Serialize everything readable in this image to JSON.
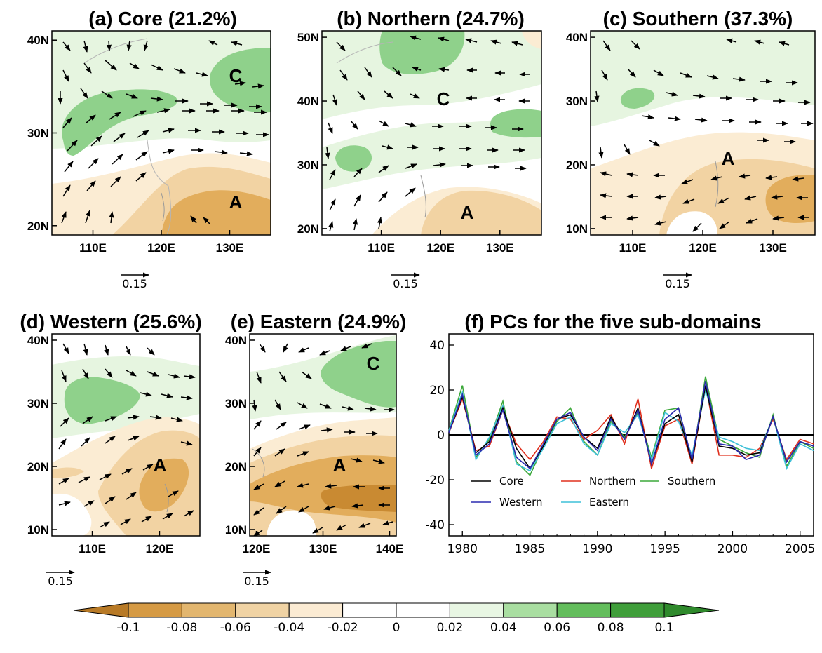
{
  "colors": {
    "green_light": "#e6f5e0",
    "green_mid": "#8fd18b",
    "green_dark": "#55b04f",
    "orange_light": "#fbecd3",
    "orange_mid": "#f2d3a3",
    "orange_dark": "#e2ad5c",
    "orange_deep": "#c98a32",
    "line_core": "#000000",
    "line_northern": "#e0301e",
    "line_southern": "#3ca83a",
    "line_western": "#2b2bb0",
    "line_eastern": "#3ec0d8"
  },
  "reference_vector": {
    "label": "0.15"
  },
  "chart_data": [
    {
      "type": "vector_map",
      "title": "(a) Core (21.2%)",
      "lon_range": [
        104,
        136
      ],
      "lat_range": [
        19,
        41
      ],
      "x_ticks": [
        "110E",
        "120E",
        "130E"
      ],
      "x_tick_values": [
        110,
        120,
        130
      ],
      "y_ticks": [
        "20N",
        "30N",
        "40N"
      ],
      "y_tick_values": [
        20,
        30,
        40
      ],
      "annotations": [
        {
          "text": "C",
          "lon": 131,
          "lat": 36
        },
        {
          "text": "A",
          "lon": 129,
          "lat": 22.3
        }
      ]
    },
    {
      "type": "vector_map",
      "title": "(b) Northern (24.7%)",
      "lon_range": [
        100,
        137
      ],
      "lat_range": [
        19,
        51
      ],
      "x_ticks": [
        "110E",
        "120E",
        "130E"
      ],
      "x_tick_values": [
        110,
        120,
        130
      ],
      "y_ticks": [
        "20N",
        "30N",
        "40N",
        "50N"
      ],
      "y_tick_values": [
        20,
        30,
        40,
        50
      ],
      "annotations": [
        {
          "text": "C",
          "lon": 121,
          "lat": 40
        },
        {
          "text": "A",
          "lon": 125,
          "lat": 22
        }
      ]
    },
    {
      "type": "vector_map",
      "title": "(c) Southern (37.3%)",
      "lon_range": [
        104,
        136
      ],
      "lat_range": [
        9,
        41
      ],
      "x_ticks": [
        "110E",
        "120E",
        "130E"
      ],
      "x_tick_values": [
        110,
        120,
        130
      ],
      "y_ticks": [
        "10N",
        "20N",
        "30N",
        "40N"
      ],
      "y_tick_values": [
        10,
        20,
        30,
        40
      ],
      "annotations": [
        {
          "text": "A",
          "lon": 126,
          "lat": 22.5
        }
      ]
    },
    {
      "type": "vector_map",
      "title": "(d) Western (25.6%)",
      "lon_range": [
        104,
        126
      ],
      "lat_range": [
        9,
        41
      ],
      "x_ticks": [
        "110E",
        "120E"
      ],
      "x_tick_values": [
        110,
        120
      ],
      "y_ticks": [
        "10N",
        "20N",
        "30N",
        "40N"
      ],
      "y_tick_values": [
        10,
        20,
        30,
        40
      ],
      "annotations": [
        {
          "text": "A",
          "lon": 118,
          "lat": 22
        }
      ]
    },
    {
      "type": "vector_map",
      "title": "(e) Eastern (24.9%)",
      "lon_range": [
        119,
        141
      ],
      "lat_range": [
        9,
        41
      ],
      "x_ticks": [
        "120E",
        "130E",
        "140E"
      ],
      "x_tick_values": [
        120,
        130,
        140
      ],
      "y_ticks": [
        "10N",
        "20N",
        "30N",
        "40N"
      ],
      "y_tick_values": [
        10,
        20,
        30,
        40
      ],
      "annotations": [
        {
          "text": "C",
          "lon": 136.5,
          "lat": 37
        },
        {
          "text": "A",
          "lon": 131.5,
          "lat": 19
        }
      ]
    },
    {
      "type": "line",
      "title": "(f) PCs for the five sub-domains",
      "xlim": [
        1979,
        2006
      ],
      "ylim": [
        -45,
        45
      ],
      "x_ticks": [
        1980,
        1985,
        1990,
        1995,
        2000,
        2005
      ],
      "y_ticks": [
        -40,
        -20,
        0,
        20,
        40
      ],
      "legend_position": "bottom-left",
      "x": [
        1979,
        1980,
        1981,
        1982,
        1983,
        1984,
        1985,
        1986,
        1987,
        1988,
        1989,
        1990,
        1991,
        1992,
        1993,
        1994,
        1995,
        1996,
        1997,
        1998,
        1999,
        2000,
        2001,
        2002,
        2003,
        2004,
        2005,
        2006
      ],
      "series": [
        {
          "name": "Core",
          "color": "#000000",
          "values": [
            1,
            17,
            -8,
            -3,
            12,
            -6,
            -15,
            -5,
            7,
            9,
            -1,
            -6,
            8,
            -2,
            12,
            -13,
            5,
            9,
            -12,
            22,
            -5,
            -6,
            -9,
            -8,
            8,
            -12,
            -3,
            -5
          ]
        },
        {
          "name": "Northern",
          "color": "#e0301e",
          "values": [
            1,
            16,
            -7,
            -5,
            11,
            -4,
            -11,
            -3,
            8,
            7,
            -2,
            2,
            9,
            -4,
            16,
            -15,
            4,
            7,
            -13,
            22,
            -9,
            -9,
            -10,
            -6,
            7,
            -11,
            -2,
            -4
          ]
        },
        {
          "name": "Southern",
          "color": "#3ca83a",
          "values": [
            2,
            22,
            -10,
            -2,
            15,
            -12,
            -18,
            -5,
            6,
            12,
            -3,
            -9,
            6,
            -1,
            10,
            -10,
            11,
            12,
            -12,
            26,
            -2,
            -5,
            -8,
            -10,
            9,
            -14,
            -3,
            -6
          ]
        },
        {
          "name": "Western",
          "color": "#2b2bb0",
          "values": [
            1,
            18,
            -9,
            -4,
            11,
            -10,
            -15,
            -4,
            7,
            10,
            -1,
            -7,
            7,
            -2,
            11,
            -13,
            7,
            12,
            -11,
            24,
            -4,
            -5,
            -11,
            -9,
            8,
            -12,
            -3,
            -5
          ]
        },
        {
          "name": "Eastern",
          "color": "#3ec0d8",
          "values": [
            2,
            19,
            -11,
            -1,
            13,
            -13,
            -16,
            -6,
            5,
            8,
            -4,
            -9,
            5,
            1,
            9,
            -11,
            10,
            6,
            -9,
            20,
            -1,
            -3,
            -6,
            -7,
            8,
            -15,
            -4,
            -7
          ]
        }
      ]
    },
    {
      "type": "colorbar",
      "tick_labels": [
        "-0.1",
        "-0.08",
        "-0.06",
        "-0.04",
        "-0.02",
        "0",
        "0.02",
        "0.04",
        "0.06",
        "0.08",
        "0.1"
      ],
      "tick_values": [
        -0.1,
        -0.08,
        -0.06,
        -0.04,
        -0.02,
        0,
        0.02,
        0.04,
        0.06,
        0.08,
        0.1
      ],
      "bin_colors": [
        "#b87a26",
        "#d59a44",
        "#e2b66f",
        "#f0d3a4",
        "#fbebd3",
        "#ffffff",
        "#ffffff",
        "#e8f6e3",
        "#a9dea1",
        "#63bd5c",
        "#3f9e3a",
        "#2f8a2c"
      ]
    }
  ]
}
